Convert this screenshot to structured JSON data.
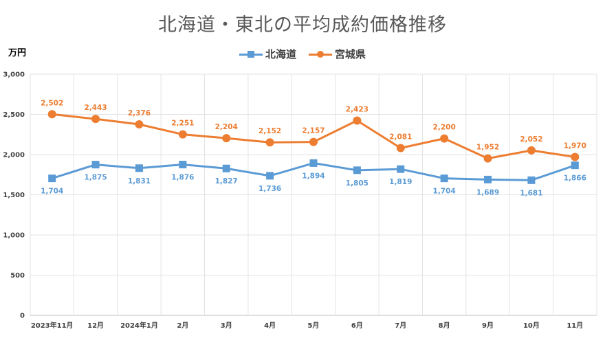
{
  "chart_data": {
    "type": "line",
    "title": "北海道・東北の平均成約価格推移",
    "unit_label": "万円",
    "categories": [
      "2023年11月",
      "12月",
      "2024年1月",
      "2月",
      "3月",
      "4月",
      "5月",
      "6月",
      "7月",
      "8月",
      "9月",
      "10月",
      "11月"
    ],
    "ylim": [
      0,
      3000
    ],
    "yticks": [
      0,
      500,
      1000,
      1500,
      2000,
      2500,
      3000
    ],
    "ytick_labels": [
      "0",
      "500",
      "1,000",
      "1,500",
      "2,000",
      "2,500",
      "3,000"
    ],
    "grid": true,
    "legend_position": "top",
    "series": [
      {
        "name": "北海道",
        "color": "#5b9bd5",
        "marker": "square",
        "values": [
          1704,
          1875,
          1831,
          1876,
          1827,
          1736,
          1894,
          1805,
          1819,
          1704,
          1689,
          1681,
          1866
        ],
        "labels": [
          "1,704",
          "1,875",
          "1,831",
          "1,876",
          "1,827",
          "1,736",
          "1,894",
          "1,805",
          "1,819",
          "1,704",
          "1,689",
          "1,681",
          "1,866"
        ]
      },
      {
        "name": "宮城県",
        "color": "#ed7d31",
        "marker": "circle",
        "values": [
          2502,
          2443,
          2376,
          2251,
          2204,
          2152,
          2157,
          2423,
          2081,
          2200,
          1952,
          2052,
          1970
        ],
        "labels": [
          "2,502",
          "2,443",
          "2,376",
          "2,251",
          "2,204",
          "2,152",
          "2,157",
          "2,423",
          "2,081",
          "2,200",
          "1,952",
          "2,052",
          "1,970"
        ]
      }
    ]
  }
}
